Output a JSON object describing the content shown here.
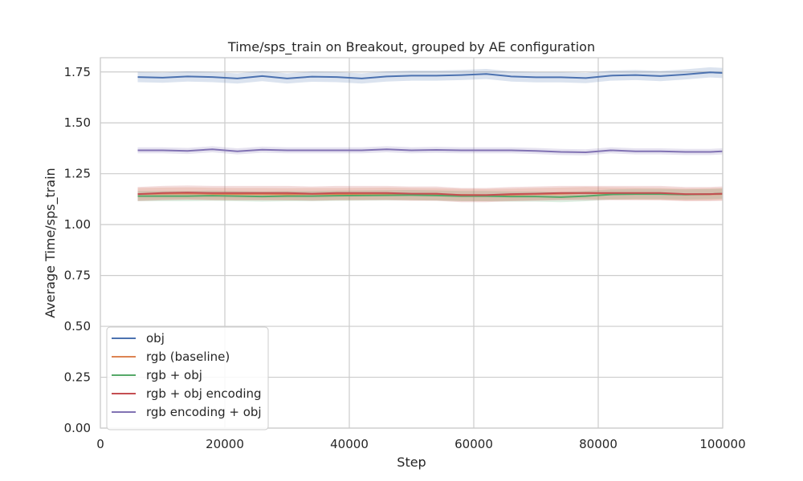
{
  "chart_data": {
    "type": "line",
    "title": "Time/sps_train on Breakout, grouped by AE configuration",
    "xlabel": "Step",
    "ylabel": "Average Time/sps_train",
    "xlim": [
      0,
      100000
    ],
    "ylim": [
      0,
      1.82
    ],
    "xticks": [
      0,
      20000,
      40000,
      60000,
      80000,
      100000
    ],
    "xtick_labels": [
      "0",
      "20000",
      "40000",
      "60000",
      "80000",
      "100000"
    ],
    "yticks": [
      0.0,
      0.25,
      0.5,
      0.75,
      1.0,
      1.25,
      1.5,
      1.75
    ],
    "ytick_labels": [
      "0.00",
      "0.25",
      "0.50",
      "0.75",
      "1.00",
      "1.25",
      "1.50",
      "1.75"
    ],
    "grid": true,
    "legend_position": "lower-left",
    "x": [
      6000,
      10000,
      14000,
      18000,
      22000,
      26000,
      30000,
      34000,
      38000,
      42000,
      46000,
      50000,
      54000,
      58000,
      62000,
      66000,
      70000,
      74000,
      78000,
      82000,
      86000,
      90000,
      94000,
      98000,
      100000
    ],
    "series": [
      {
        "name": "obj",
        "color": "#4c72b0",
        "values": [
          1.725,
          1.722,
          1.728,
          1.725,
          1.718,
          1.73,
          1.718,
          1.727,
          1.725,
          1.718,
          1.728,
          1.732,
          1.732,
          1.735,
          1.74,
          1.728,
          1.724,
          1.724,
          1.72,
          1.732,
          1.735,
          1.73,
          1.738,
          1.748,
          1.745
        ],
        "band": 0.025
      },
      {
        "name": "rgb (baseline)",
        "color": "#dd8452",
        "values": [
          1.15,
          1.152,
          1.153,
          1.151,
          1.15,
          1.15,
          1.149,
          1.15,
          1.15,
          1.151,
          1.152,
          1.15,
          1.149,
          1.146,
          1.145,
          1.147,
          1.15,
          1.152,
          1.155,
          1.153,
          1.152,
          1.151,
          1.148,
          1.149,
          1.15
        ],
        "band": 0.03
      },
      {
        "name": "rgb + obj",
        "color": "#55a868",
        "values": [
          1.14,
          1.14,
          1.14,
          1.142,
          1.14,
          1.138,
          1.14,
          1.14,
          1.142,
          1.143,
          1.144,
          1.145,
          1.143,
          1.14,
          1.14,
          1.138,
          1.138,
          1.135,
          1.14,
          1.148,
          1.15,
          1.15,
          1.148,
          1.15,
          1.152
        ],
        "band": 0.025
      },
      {
        "name": "rgb + obj encoding",
        "color": "#c44e52",
        "values": [
          1.15,
          1.155,
          1.157,
          1.155,
          1.155,
          1.155,
          1.155,
          1.152,
          1.155,
          1.155,
          1.155,
          1.152,
          1.152,
          1.145,
          1.145,
          1.15,
          1.152,
          1.155,
          1.155,
          1.155,
          1.155,
          1.155,
          1.15,
          1.15,
          1.152
        ],
        "band": 0.035
      },
      {
        "name": "rgb encoding + obj",
        "color": "#8172b3",
        "values": [
          1.365,
          1.365,
          1.362,
          1.37,
          1.36,
          1.368,
          1.365,
          1.365,
          1.365,
          1.365,
          1.37,
          1.365,
          1.367,
          1.365,
          1.365,
          1.365,
          1.362,
          1.357,
          1.355,
          1.365,
          1.36,
          1.36,
          1.357,
          1.357,
          1.36
        ],
        "band": 0.015
      }
    ]
  }
}
